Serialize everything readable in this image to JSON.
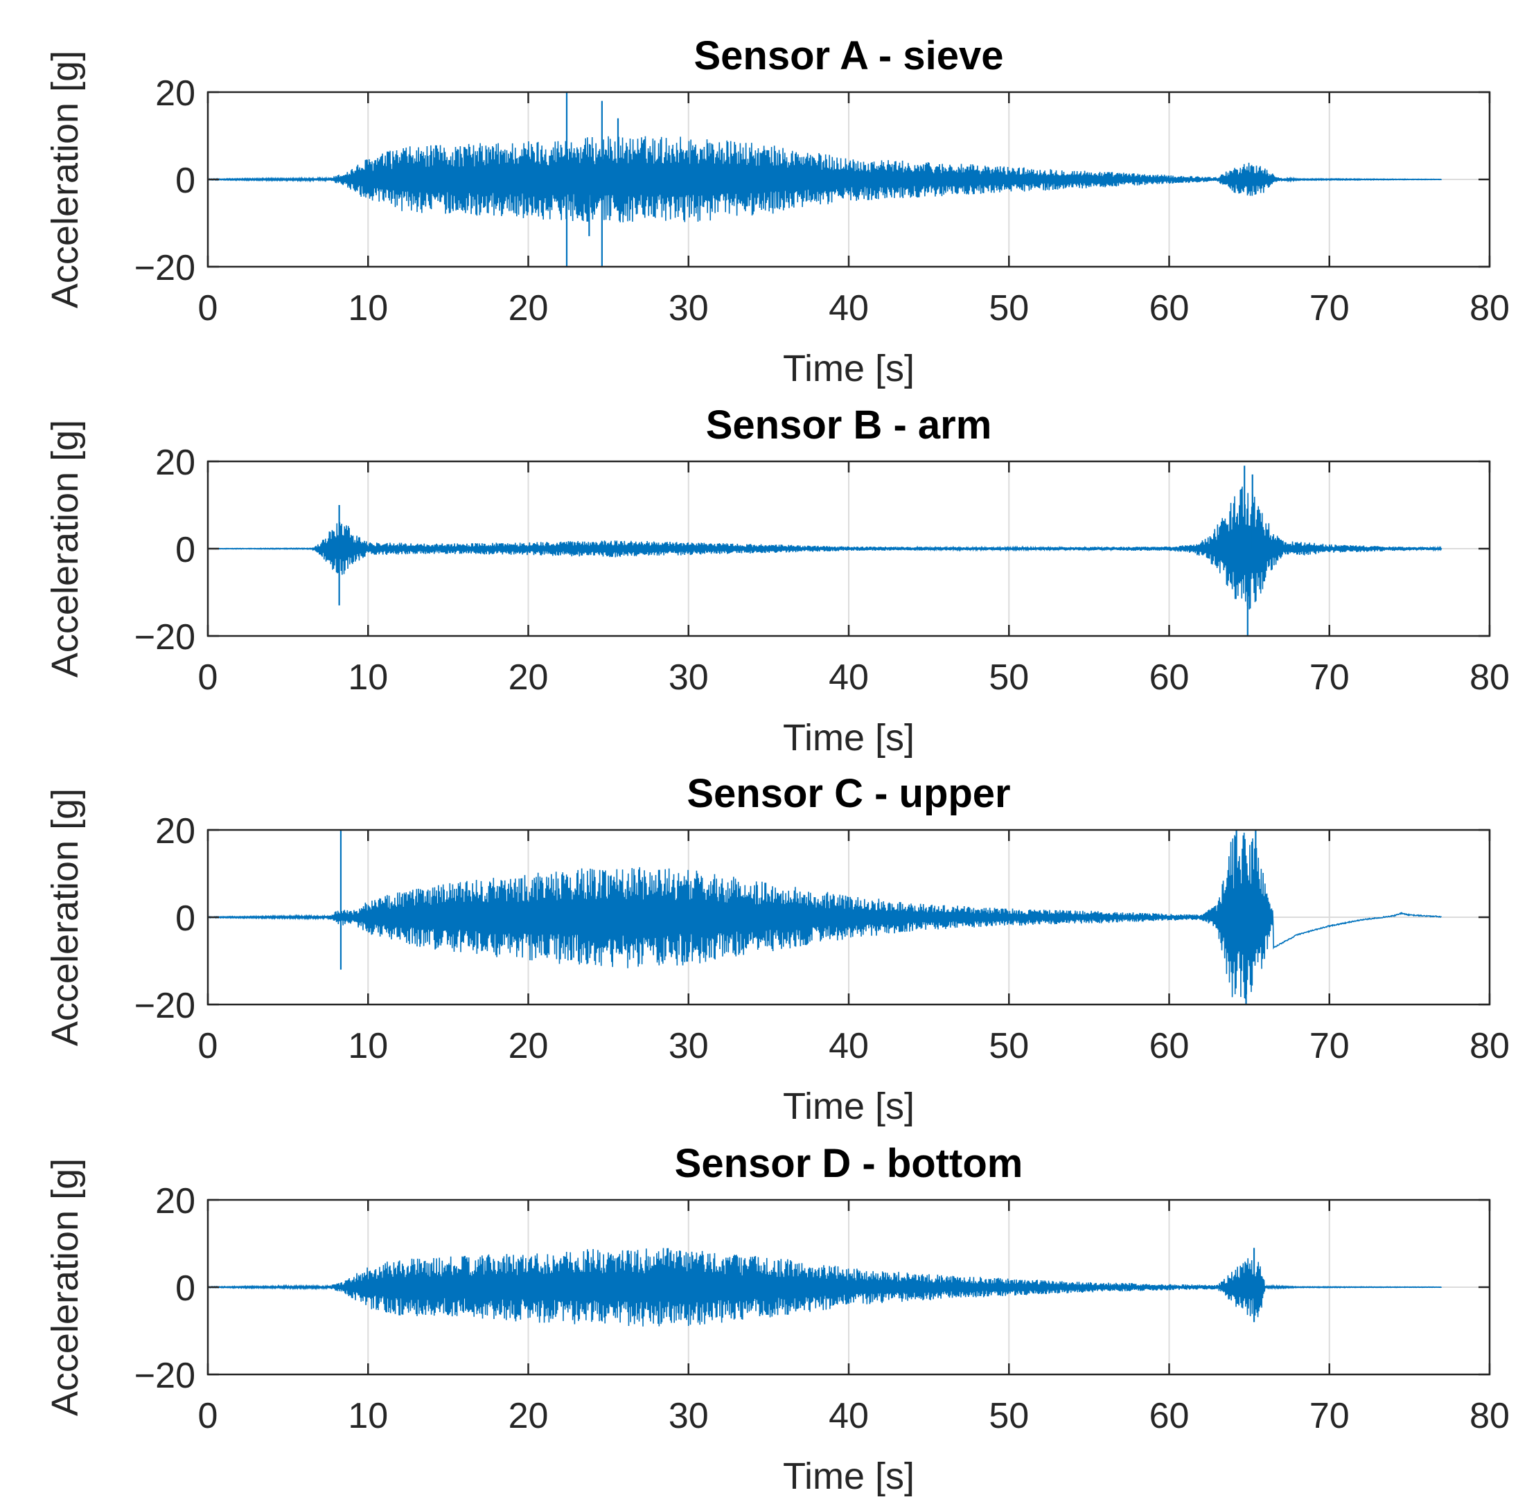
{
  "chart_data": [
    {
      "type": "line",
      "title": "Sensor A - sieve",
      "xlabel": "Time [s]",
      "ylabel": "Acceleration [g]",
      "xlim": [
        0,
        80
      ],
      "ylim": [
        -20,
        20
      ],
      "xticks": [
        "0",
        "10",
        "20",
        "30",
        "40",
        "50",
        "60",
        "70",
        "80"
      ],
      "yticks": [
        "20",
        "0",
        "−20"
      ],
      "grid": true,
      "duration": 77,
      "series": [
        {
          "name": "Acceleration",
          "envelope": [
            [
              0,
              0.1
            ],
            [
              7.5,
              0.3
            ],
            [
              8.5,
              1.5
            ],
            [
              10,
              5
            ],
            [
              12,
              7.5
            ],
            [
              15,
              8
            ],
            [
              20,
              9
            ],
            [
              25,
              10
            ],
            [
              30,
              10
            ],
            [
              35,
              8
            ],
            [
              40,
              5
            ],
            [
              45,
              4
            ],
            [
              50,
              3
            ],
            [
              55,
              2
            ],
            [
              60,
              1
            ],
            [
              62,
              0.7
            ],
            [
              63,
              0.5
            ],
            [
              64,
              3
            ],
            [
              65,
              4
            ],
            [
              66,
              3
            ],
            [
              66.7,
              0.5
            ],
            [
              68,
              0.15
            ],
            [
              77,
              0.05
            ]
          ],
          "spikes": [
            [
              22.4,
              20
            ],
            [
              22.4,
              -20
            ],
            [
              24.6,
              -20
            ],
            [
              24.6,
              18
            ],
            [
              25.6,
              14
            ],
            [
              23.8,
              -13
            ]
          ]
        }
      ]
    },
    {
      "type": "line",
      "title": "Sensor B - arm",
      "xlabel": "Time [s]",
      "ylabel": "Acceleration [g]",
      "xlim": [
        0,
        80
      ],
      "ylim": [
        -20,
        20
      ],
      "xticks": [
        "0",
        "10",
        "20",
        "30",
        "40",
        "50",
        "60",
        "70",
        "80"
      ],
      "yticks": [
        "20",
        "0",
        "−20"
      ],
      "grid": true,
      "duration": 77,
      "series": [
        {
          "name": "Acceleration",
          "envelope": [
            [
              0,
              0.05
            ],
            [
              6.5,
              0.1
            ],
            [
              7,
              1.5
            ],
            [
              8,
              6
            ],
            [
              8.5,
              7
            ],
            [
              9,
              4
            ],
            [
              10,
              1.5
            ],
            [
              15,
              1.2
            ],
            [
              20,
              1.5
            ],
            [
              25,
              2
            ],
            [
              30,
              1.5
            ],
            [
              35,
              1
            ],
            [
              40,
              0.5
            ],
            [
              50,
              0.3
            ],
            [
              60,
              0.5
            ],
            [
              61.5,
              1
            ],
            [
              62.5,
              3
            ],
            [
              63.5,
              8
            ],
            [
              64.5,
              16
            ],
            [
              65.3,
              14
            ],
            [
              66,
              8
            ],
            [
              67,
              2
            ],
            [
              70,
              1
            ],
            [
              75,
              0.4
            ],
            [
              77,
              0.3
            ]
          ],
          "spikes": [
            [
              8.2,
              10
            ],
            [
              8.2,
              -13
            ],
            [
              64.7,
              19
            ],
            [
              64.9,
              -20
            ],
            [
              65.2,
              17
            ]
          ]
        }
      ]
    },
    {
      "type": "line",
      "title": "Sensor C - upper",
      "xlabel": "Time [s]",
      "ylabel": "Acceleration [g]",
      "xlim": [
        0,
        80
      ],
      "ylim": [
        -20,
        20
      ],
      "xticks": [
        "0",
        "10",
        "20",
        "30",
        "40",
        "50",
        "60",
        "70",
        "80"
      ],
      "yticks": [
        "20",
        "0",
        "−20"
      ],
      "grid": true,
      "duration": 77,
      "series": [
        {
          "name": "Acceleration",
          "envelope": [
            [
              0,
              0.1
            ],
            [
              7.5,
              0.3
            ],
            [
              8.3,
              2
            ],
            [
              9,
              1.5
            ],
            [
              10,
              4
            ],
            [
              12,
              6
            ],
            [
              15,
              8
            ],
            [
              20,
              10
            ],
            [
              25,
              12
            ],
            [
              30,
              11
            ],
            [
              35,
              8
            ],
            [
              40,
              5
            ],
            [
              45,
              3
            ],
            [
              50,
              2
            ],
            [
              55,
              1.5
            ],
            [
              60,
              0.8
            ],
            [
              62,
              0.6
            ],
            [
              63,
              3
            ],
            [
              63.8,
              18
            ],
            [
              64.5,
              20
            ],
            [
              65.3,
              20
            ],
            [
              66,
              10
            ],
            [
              66.5,
              1
            ]
          ],
          "spikes": [
            [
              8.3,
              20
            ],
            [
              8.3,
              -12
            ],
            [
              64.2,
              20
            ],
            [
              64.8,
              -20
            ],
            [
              65.4,
              20
            ]
          ],
          "decay_tail": [
            [
              66.5,
              -7
            ],
            [
              68,
              -4
            ],
            [
              70,
              -2
            ],
            [
              72,
              -0.6
            ],
            [
              74,
              0.3
            ],
            [
              74.5,
              0.9
            ],
            [
              75,
              0.5
            ],
            [
              77,
              0.1
            ]
          ]
        }
      ]
    },
    {
      "type": "line",
      "title": "Sensor D - bottom",
      "xlabel": "Time [s]",
      "ylabel": "Acceleration [g]",
      "xlim": [
        0,
        80
      ],
      "ylim": [
        -20,
        20
      ],
      "xticks": [
        "0",
        "10",
        "20",
        "30",
        "40",
        "50",
        "60",
        "70",
        "80"
      ],
      "yticks": [
        "20",
        "0",
        "−20"
      ],
      "grid": true,
      "duration": 77,
      "series": [
        {
          "name": "Acceleration",
          "envelope": [
            [
              0,
              0.1
            ],
            [
              7.5,
              0.3
            ],
            [
              8.5,
              1.5
            ],
            [
              10,
              5
            ],
            [
              12,
              6.5
            ],
            [
              15,
              7
            ],
            [
              20,
              8
            ],
            [
              25,
              9
            ],
            [
              30,
              9
            ],
            [
              35,
              7
            ],
            [
              40,
              4.5
            ],
            [
              45,
              3
            ],
            [
              50,
              2
            ],
            [
              55,
              1.2
            ],
            [
              60,
              0.7
            ],
            [
              63,
              0.5
            ],
            [
              64,
              4
            ],
            [
              65,
              7
            ],
            [
              65.7,
              7
            ],
            [
              66,
              0.3
            ],
            [
              68,
              0.1
            ],
            [
              77,
              0.05
            ]
          ],
          "spikes": [
            [
              65.3,
              9
            ],
            [
              65.3,
              -8
            ]
          ]
        }
      ]
    }
  ],
  "colors": {
    "trace": "#0072BD"
  }
}
